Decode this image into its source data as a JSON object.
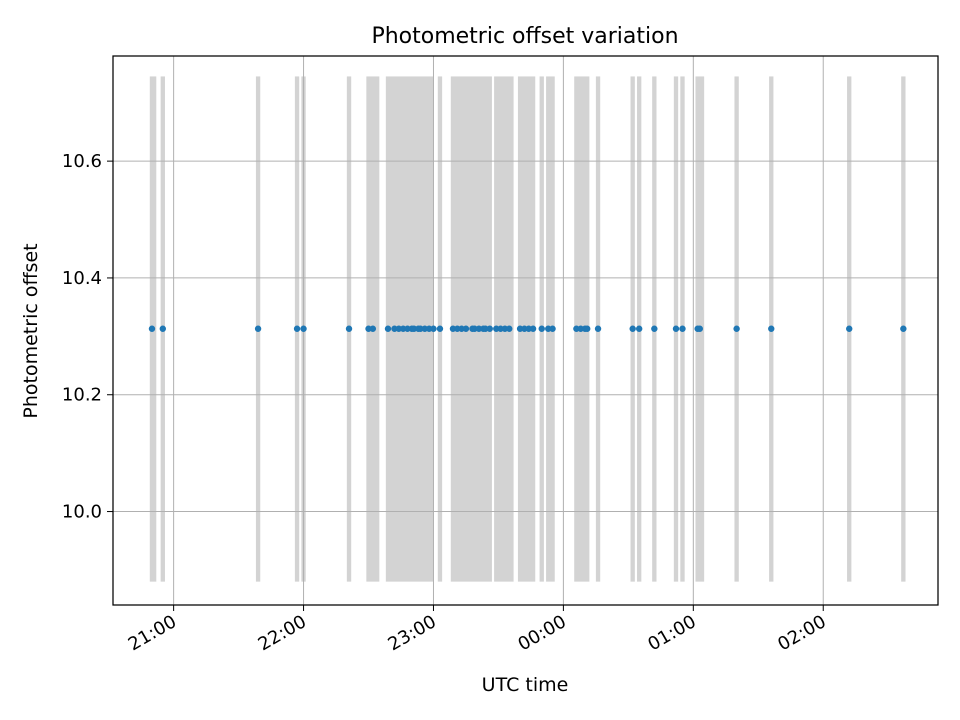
{
  "chart_data": {
    "type": "scatter",
    "title": "Photometric offset variation",
    "xlabel": "UTC time",
    "ylabel": "Photometric offset",
    "x_axis": "time",
    "xlim": [
      "20:32",
      "02:53"
    ],
    "x_ticks": [
      "21:00",
      "22:00",
      "23:00",
      "00:00",
      "01:00",
      "02:00"
    ],
    "ylim": [
      9.84,
      10.78
    ],
    "y_ticks": [
      "10.0",
      "10.2",
      "10.4",
      "10.6"
    ],
    "grid": true,
    "band_range": [
      9.88,
      10.745
    ],
    "point_color": "#1f77b4",
    "band_color": "#d3d3d3",
    "series": [
      {
        "values": [
          {
            "t": "20:50",
            "y": 10.313
          },
          {
            "t": "20:55",
            "y": 10.313
          },
          {
            "t": "21:39",
            "y": 10.313
          },
          {
            "t": "21:57",
            "y": 10.313
          },
          {
            "t": "22:00",
            "y": 10.313
          },
          {
            "t": "22:21",
            "y": 10.313
          },
          {
            "t": "22:30",
            "y": 10.313
          },
          {
            "t": "22:32",
            "y": 10.313
          },
          {
            "t": "22:39",
            "y": 10.313
          },
          {
            "t": "22:42",
            "y": 10.313
          },
          {
            "t": "22:44",
            "y": 10.313
          },
          {
            "t": "22:46",
            "y": 10.313
          },
          {
            "t": "22:48",
            "y": 10.313
          },
          {
            "t": "22:50",
            "y": 10.313
          },
          {
            "t": "22:51",
            "y": 10.313
          },
          {
            "t": "22:53",
            "y": 10.313
          },
          {
            "t": "22:54",
            "y": 10.313
          },
          {
            "t": "22:56",
            "y": 10.313
          },
          {
            "t": "22:58",
            "y": 10.313
          },
          {
            "t": "23:00",
            "y": 10.313
          },
          {
            "t": "23:03",
            "y": 10.313
          },
          {
            "t": "23:09",
            "y": 10.313
          },
          {
            "t": "23:11",
            "y": 10.313
          },
          {
            "t": "23:13",
            "y": 10.313
          },
          {
            "t": "23:15",
            "y": 10.313
          },
          {
            "t": "23:18",
            "y": 10.313
          },
          {
            "t": "23:19",
            "y": 10.313
          },
          {
            "t": "23:21",
            "y": 10.313
          },
          {
            "t": "23:23",
            "y": 10.313
          },
          {
            "t": "23:24",
            "y": 10.313
          },
          {
            "t": "23:26",
            "y": 10.313
          },
          {
            "t": "23:29",
            "y": 10.313
          },
          {
            "t": "23:31",
            "y": 10.313
          },
          {
            "t": "23:33",
            "y": 10.313
          },
          {
            "t": "23:35",
            "y": 10.313
          },
          {
            "t": "23:40",
            "y": 10.313
          },
          {
            "t": "23:42",
            "y": 10.313
          },
          {
            "t": "23:44",
            "y": 10.313
          },
          {
            "t": "23:46",
            "y": 10.313
          },
          {
            "t": "23:50",
            "y": 10.313
          },
          {
            "t": "23:53",
            "y": 10.313
          },
          {
            "t": "23:55",
            "y": 10.313
          },
          {
            "t": "00:06",
            "y": 10.313
          },
          {
            "t": "00:08",
            "y": 10.313
          },
          {
            "t": "00:10",
            "y": 10.313
          },
          {
            "t": "00:11",
            "y": 10.313
          },
          {
            "t": "00:16",
            "y": 10.313
          },
          {
            "t": "00:32",
            "y": 10.313
          },
          {
            "t": "00:35",
            "y": 10.313
          },
          {
            "t": "00:42",
            "y": 10.313
          },
          {
            "t": "00:52",
            "y": 10.313
          },
          {
            "t": "00:55",
            "y": 10.313
          },
          {
            "t": "01:02",
            "y": 10.313
          },
          {
            "t": "01:03",
            "y": 10.313
          },
          {
            "t": "01:20",
            "y": 10.313
          },
          {
            "t": "01:36",
            "y": 10.313
          },
          {
            "t": "02:12",
            "y": 10.313
          },
          {
            "t": "02:37",
            "y": 10.313
          }
        ]
      }
    ],
    "bands": [
      [
        "20:49",
        "20:52"
      ],
      [
        "20:54",
        "20:56"
      ],
      [
        "21:38",
        "21:40"
      ],
      [
        "21:56",
        "21:58"
      ],
      [
        "21:59",
        "22:01"
      ],
      [
        "22:20",
        "22:22"
      ],
      [
        "22:29",
        "22:35"
      ],
      [
        "22:38",
        "23:00"
      ],
      [
        "23:02",
        "23:04"
      ],
      [
        "23:08",
        "23:27"
      ],
      [
        "23:28",
        "23:37"
      ],
      [
        "23:39",
        "23:47"
      ],
      [
        "23:49",
        "23:51"
      ],
      [
        "23:52",
        "23:56"
      ],
      [
        "00:05",
        "00:12"
      ],
      [
        "00:15",
        "00:17"
      ],
      [
        "00:31",
        "00:33"
      ],
      [
        "00:34",
        "00:36"
      ],
      [
        "00:41",
        "00:43"
      ],
      [
        "00:51",
        "00:53"
      ],
      [
        "00:54",
        "00:56"
      ],
      [
        "01:01",
        "01:05"
      ],
      [
        "01:19",
        "01:21"
      ],
      [
        "01:35",
        "01:37"
      ],
      [
        "02:11",
        "02:13"
      ],
      [
        "02:36",
        "02:38"
      ]
    ]
  }
}
